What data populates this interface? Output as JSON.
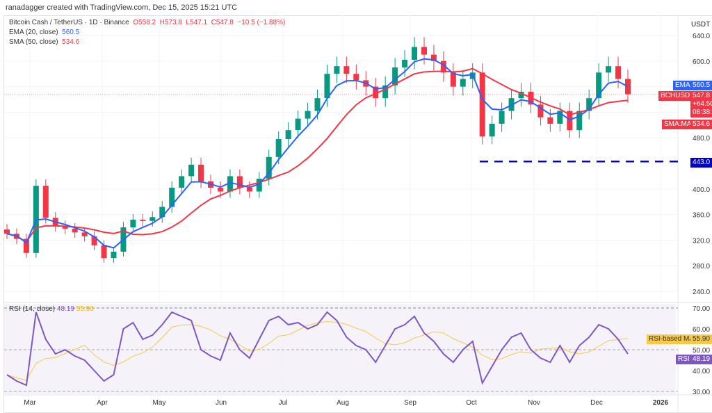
{
  "credit": "ranadagger created with TradingView.com, Dec 15, 2025 15:21 UTC",
  "legend": {
    "symbol": "Bitcoin Cash / TetherUS · 1D · Binance",
    "o": "O558.2",
    "h": "H573.8",
    "l": "L547.1",
    "c": "C547.8",
    "change": "−10.5 (−1.88%)",
    "ema_label": "EMA (20, close)",
    "ema_value": "560.5",
    "sma_label": "SMA (50, close)",
    "sma_value": "534.6",
    "rsi_label": "RSI (14, close)",
    "rsi_value": "48.19",
    "rsi_ma_value": "55.90"
  },
  "tags": {
    "ema": "EMA",
    "ema_v": "560.5",
    "sym": "BCHUSDT",
    "sym_v": "547.8",
    "sym_chg": "+64.50",
    "countdown": "08:38:",
    "sma": "SMA:MA",
    "sma_v": "534.6",
    "support": "443.0",
    "rsi_ma": "RSI-based MA",
    "rsi_ma_v": "55.90",
    "rsi": "RSI",
    "rsi_v": "48.19",
    "currency": "USDT"
  },
  "colors": {
    "up": "#089981",
    "down": "#f23645",
    "ema": "#2962ff",
    "sma": "#f23645",
    "rsi": "#7e57c2",
    "rsi_ma": "#f7c948",
    "support": "#0000cc"
  },
  "chart_data": {
    "type": "candlestick",
    "title": "Bitcoin Cash / TetherUS · 1D · Binance",
    "price_ticks": [
      640,
      600,
      560,
      520,
      480,
      443,
      400,
      360,
      320,
      280,
      240
    ],
    "price_tick_labels": [
      "640.0",
      "600.0",
      "",
      "",
      "480.0",
      "443.0",
      "400.0",
      "360.0",
      "320.0",
      "280.0",
      "240.0"
    ],
    "ylim": [
      232,
      660
    ],
    "support_level": 443,
    "x_labels": [
      "Mar",
      "Apr",
      "May",
      "Jun",
      "Jul",
      "Aug",
      "Sep",
      "Oct",
      "Nov",
      "Dec",
      "2026"
    ],
    "closes": [
      330,
      322,
      300,
      405,
      355,
      342,
      338,
      332,
      326,
      312,
      292,
      302,
      340,
      352,
      350,
      356,
      372,
      402,
      420,
      438,
      412,
      402,
      396,
      420,
      402,
      396,
      416,
      450,
      478,
      492,
      510,
      522,
      542,
      580,
      592,
      580,
      570,
      560,
      542,
      562,
      590,
      602,
      622,
      610,
      600,
      582,
      560,
      572,
      582,
      482,
      502,
      522,
      542,
      552,
      532,
      512,
      502,
      522,
      492,
      522,
      542,
      582,
      592,
      572,
      548
    ],
    "rsi_ticks": [
      70,
      60,
      50,
      40,
      30
    ],
    "rsi": [
      38,
      35,
      33,
      68,
      55,
      48,
      50,
      47,
      45,
      40,
      35,
      38,
      60,
      63,
      55,
      57,
      62,
      68,
      66,
      64,
      50,
      47,
      45,
      58,
      50,
      46,
      55,
      64,
      66,
      62,
      63,
      60,
      62,
      68,
      64,
      56,
      52,
      50,
      44,
      52,
      60,
      62,
      66,
      58,
      54,
      48,
      44,
      50,
      54,
      34,
      42,
      50,
      56,
      58,
      50,
      46,
      44,
      52,
      44,
      52,
      56,
      62,
      60,
      55,
      48
    ]
  }
}
